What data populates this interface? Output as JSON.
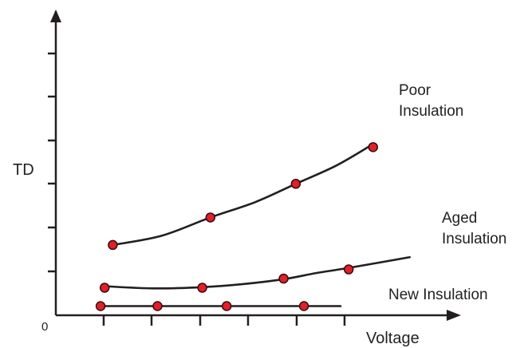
{
  "chart_data": {
    "type": "line",
    "title": "",
    "xlabel": "Voltage",
    "ylabel": "TD",
    "origin_label": "0",
    "grid": false,
    "legend": "none",
    "xlim": [
      0,
      10
    ],
    "ylim": [
      0,
      10
    ],
    "x_tick_count": 6,
    "y_tick_count": 6,
    "colors": {
      "line": "#231f20",
      "marker_fill": "#e0202a",
      "marker_stroke": "#3a0a0a",
      "axis": "#231f20"
    },
    "series": [
      {
        "name_lines": [
          "Poor",
          "Insulation"
        ],
        "points": [
          [
            1.4,
            2.3
          ],
          [
            3.8,
            3.2
          ],
          [
            5.9,
            4.3
          ],
          [
            7.8,
            5.5
          ]
        ],
        "curve": [
          [
            1.4,
            2.3
          ],
          [
            2.6,
            2.6
          ],
          [
            3.8,
            3.2
          ],
          [
            4.9,
            3.7
          ],
          [
            5.9,
            4.3
          ],
          [
            6.9,
            4.9
          ],
          [
            7.8,
            5.6
          ]
        ]
      },
      {
        "name_lines": [
          "Aged",
          "Insulation"
        ],
        "points": [
          [
            1.2,
            0.9
          ],
          [
            3.6,
            0.9
          ],
          [
            5.6,
            1.2
          ],
          [
            7.2,
            1.5
          ]
        ],
        "curve": [
          [
            1.2,
            0.95
          ],
          [
            2.4,
            0.88
          ],
          [
            3.6,
            0.92
          ],
          [
            4.6,
            1.02
          ],
          [
            5.6,
            1.18
          ],
          [
            6.4,
            1.38
          ],
          [
            7.2,
            1.55
          ],
          [
            8.7,
            1.9
          ]
        ]
      },
      {
        "name_lines": [
          "New Insulation"
        ],
        "points": [
          [
            1.1,
            0.3
          ],
          [
            2.5,
            0.3
          ],
          [
            4.2,
            0.3
          ],
          [
            6.1,
            0.3
          ]
        ],
        "curve": [
          [
            1.1,
            0.3
          ],
          [
            7.0,
            0.3
          ]
        ]
      }
    ]
  }
}
